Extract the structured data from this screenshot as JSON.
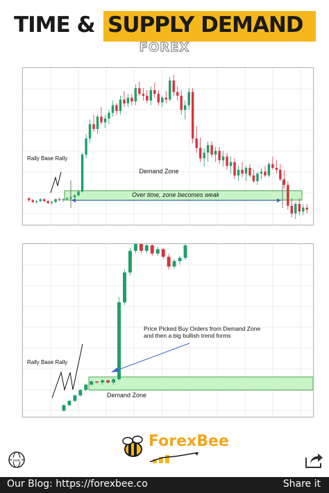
{
  "header": {
    "title_left": "TIME &",
    "title_right": "SUPPLY DEMAND",
    "subtitle": "FOREX"
  },
  "colors": {
    "accent": "#f5b81c",
    "bull": "#1f9e6a",
    "bear": "#d9313e",
    "zone_fill": "#c8f5c8",
    "zone_border": "#2a8a2a",
    "arrow": "#3b63c4",
    "footer_bg": "#1c1c1c"
  },
  "chart_data": [
    {
      "type": "candlestick",
      "annotations": {
        "pattern_label": "Rally Base Rally",
        "zone_label": "Demand Zone",
        "arrow_label": "Over time, zone becomes weak"
      },
      "candles": [
        [
          62,
          63,
          58,
          60
        ],
        [
          60,
          61,
          57,
          58
        ],
        [
          58,
          60,
          56,
          59
        ],
        [
          59,
          62,
          58,
          61
        ],
        [
          61,
          62,
          58,
          59
        ],
        [
          59,
          60,
          56,
          57
        ],
        [
          57,
          59,
          55,
          58
        ],
        [
          58,
          62,
          57,
          61
        ],
        [
          61,
          63,
          59,
          60
        ],
        [
          60,
          62,
          58,
          61
        ],
        [
          61,
          63,
          60,
          62
        ],
        [
          62,
          64,
          60,
          63
        ],
        [
          63,
          66,
          62,
          65
        ],
        [
          65,
          70,
          64,
          69
        ],
        [
          69,
          110,
          68,
          108
        ],
        [
          108,
          130,
          104,
          125
        ],
        [
          125,
          145,
          120,
          140
        ],
        [
          140,
          150,
          132,
          135
        ],
        [
          135,
          150,
          130,
          148
        ],
        [
          148,
          158,
          140,
          142
        ],
        [
          142,
          150,
          136,
          146
        ],
        [
          146,
          155,
          140,
          152
        ],
        [
          152,
          165,
          148,
          160
        ],
        [
          160,
          162,
          150,
          154
        ],
        [
          154,
          170,
          150,
          166
        ],
        [
          166,
          175,
          158,
          162
        ],
        [
          162,
          172,
          158,
          168
        ],
        [
          168,
          172,
          160,
          164
        ],
        [
          164,
          182,
          160,
          178
        ],
        [
          178,
          185,
          170,
          172
        ],
        [
          172,
          178,
          165,
          170
        ],
        [
          170,
          176,
          162,
          165
        ],
        [
          165,
          180,
          160,
          176
        ],
        [
          176,
          184,
          168,
          172
        ],
        [
          172,
          176,
          160,
          163
        ],
        [
          163,
          170,
          158,
          168
        ],
        [
          168,
          175,
          162,
          166
        ],
        [
          166,
          190,
          164,
          186
        ],
        [
          186,
          192,
          170,
          174
        ],
        [
          174,
          180,
          165,
          170
        ],
        [
          170,
          176,
          150,
          155
        ],
        [
          155,
          165,
          145,
          160
        ],
        [
          160,
          178,
          155,
          174
        ],
        [
          174,
          178,
          120,
          125
        ],
        [
          125,
          138,
          110,
          115
        ],
        [
          115,
          126,
          100,
          104
        ],
        [
          104,
          115,
          95,
          110
        ],
        [
          110,
          122,
          100,
          118
        ],
        [
          118,
          122,
          105,
          108
        ],
        [
          108,
          116,
          100,
          112
        ],
        [
          112,
          116,
          98,
          102
        ],
        [
          102,
          112,
          95,
          106
        ],
        [
          106,
          110,
          92,
          96
        ],
        [
          96,
          106,
          88,
          100
        ],
        [
          100,
          104,
          82,
          86
        ],
        [
          86,
          96,
          80,
          92
        ],
        [
          92,
          100,
          84,
          88
        ],
        [
          88,
          96,
          80,
          94
        ],
        [
          94,
          98,
          84,
          86
        ],
        [
          86,
          92,
          78,
          80
        ],
        [
          80,
          90,
          76,
          88
        ],
        [
          88,
          94,
          82,
          90
        ],
        [
          90,
          96,
          84,
          86
        ],
        [
          86,
          100,
          84,
          98
        ],
        [
          98,
          106,
          92,
          94
        ],
        [
          94,
          102,
          88,
          92
        ],
        [
          92,
          98,
          80,
          82
        ],
        [
          82,
          92,
          72,
          76
        ],
        [
          76,
          80,
          50,
          54
        ],
        [
          54,
          62,
          42,
          46
        ],
        [
          46,
          58,
          40,
          56
        ],
        [
          56,
          62,
          44,
          48
        ],
        [
          48,
          56,
          44,
          52
        ],
        [
          52,
          56,
          46,
          50
        ]
      ],
      "zone": {
        "low": 60,
        "high": 70
      }
    },
    {
      "type": "candlestick",
      "annotations": {
        "pattern_label": "Rally Base Rally",
        "zone_label": "Demand Zone",
        "arrow_label_line1": "Price Picked Buy Orders from Demand Zone",
        "arrow_label_line2": "and then a big bullish trend forms"
      },
      "candles": [
        [
          10,
          22,
          8,
          20
        ],
        [
          20,
          30,
          18,
          28
        ],
        [
          28,
          40,
          26,
          38
        ],
        [
          38,
          50,
          36,
          48
        ],
        [
          48,
          60,
          46,
          58
        ],
        [
          58,
          66,
          56,
          64
        ],
        [
          64,
          62,
          60,
          62
        ],
        [
          62,
          68,
          58,
          66
        ],
        [
          66,
          64,
          60,
          62
        ],
        [
          62,
          70,
          58,
          68
        ],
        [
          68,
          220,
          66,
          210
        ],
        [
          210,
          270,
          205,
          265
        ],
        [
          265,
          310,
          260,
          305
        ],
        [
          305,
          320,
          300,
          318
        ],
        [
          318,
          322,
          300,
          305
        ],
        [
          305,
          320,
          300,
          315
        ],
        [
          315,
          318,
          296,
          300
        ],
        [
          300,
          312,
          296,
          308
        ],
        [
          308,
          310,
          290,
          294
        ],
        [
          294,
          300,
          270,
          276
        ],
        [
          276,
          290,
          272,
          286
        ],
        [
          286,
          296,
          280,
          292
        ],
        [
          292,
          320,
          288,
          315
        ]
      ],
      "zone": {
        "low": 48,
        "high": 72
      }
    }
  ],
  "logo": {
    "brand": "ForexBee"
  },
  "footer": {
    "blog": "Our Blog: https://forexbee.co",
    "share": "Share it"
  }
}
